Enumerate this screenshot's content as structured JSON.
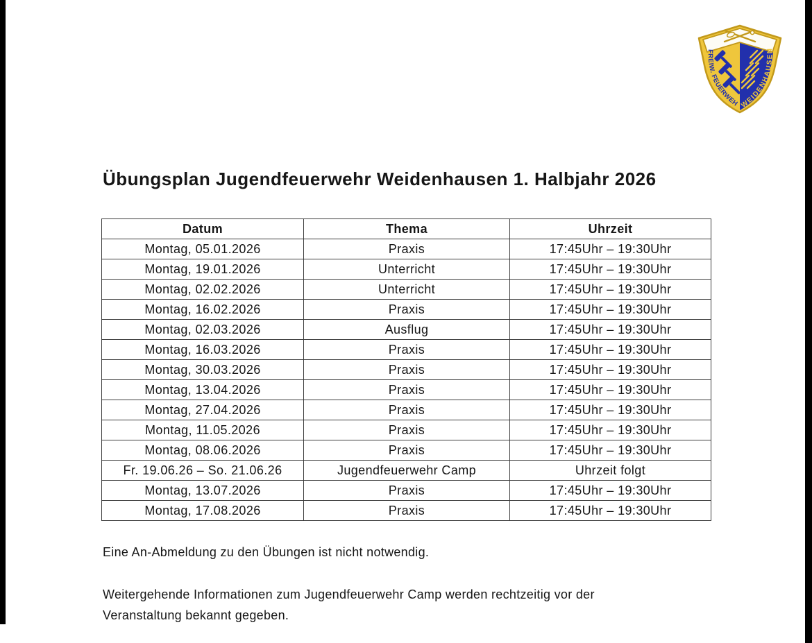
{
  "page": {
    "title": "Übungsplan Jugendfeuerwehr Weidenhausen 1. Halbjahr 2026"
  },
  "logo": {
    "left_text": "FREIW. FEUERWEHR",
    "right_text": "WEIDENHAUSEN"
  },
  "colors": {
    "logo-gold": "#EFC63C",
    "logo-gold-dark": "#C2991B",
    "logo-blue": "#2230AC",
    "logo-white": "#FDFCF5"
  },
  "table": {
    "columns": [
      "Datum",
      "Thema",
      "Uhrzeit"
    ],
    "rows": [
      [
        "Montag, 05.01.2026",
        "Praxis",
        "17:45Uhr – 19:30Uhr"
      ],
      [
        "Montag, 19.01.2026",
        "Unterricht",
        "17:45Uhr – 19:30Uhr"
      ],
      [
        "Montag, 02.02.2026",
        "Unterricht",
        "17:45Uhr – 19:30Uhr"
      ],
      [
        "Montag, 16.02.2026",
        "Praxis",
        "17:45Uhr – 19:30Uhr"
      ],
      [
        "Montag, 02.03.2026",
        "Ausflug",
        "17:45Uhr – 19:30Uhr"
      ],
      [
        "Montag, 16.03.2026",
        "Praxis",
        "17:45Uhr – 19:30Uhr"
      ],
      [
        "Montag, 30.03.2026",
        "Praxis",
        "17:45Uhr – 19:30Uhr"
      ],
      [
        "Montag, 13.04.2026",
        "Praxis",
        "17:45Uhr – 19:30Uhr"
      ],
      [
        "Montag, 27.04.2026",
        "Praxis",
        "17:45Uhr – 19:30Uhr"
      ],
      [
        "Montag, 11.05.2026",
        "Praxis",
        "17:45Uhr – 19:30Uhr"
      ],
      [
        "Montag, 08.06.2026",
        "Praxis",
        "17:45Uhr – 19:30Uhr"
      ],
      [
        "Fr. 19.06.26 – So. 21.06.26",
        "Jugendfeuerwehr Camp",
        "Uhrzeit folgt"
      ],
      [
        "Montag, 13.07.2026",
        "Praxis",
        "17:45Uhr – 19:30Uhr"
      ],
      [
        "Montag, 17.08.2026",
        "Praxis",
        "17:45Uhr – 19:30Uhr"
      ]
    ]
  },
  "notes": {
    "note1": "Eine An-Abmeldung zu den Übungen ist nicht notwendig.",
    "note2_line1": "Weitergehende Informationen zum Jugendfeuerwehr Camp werden rechtzeitig vor der",
    "note2_line2": "Veranstaltung bekannt gegeben."
  }
}
